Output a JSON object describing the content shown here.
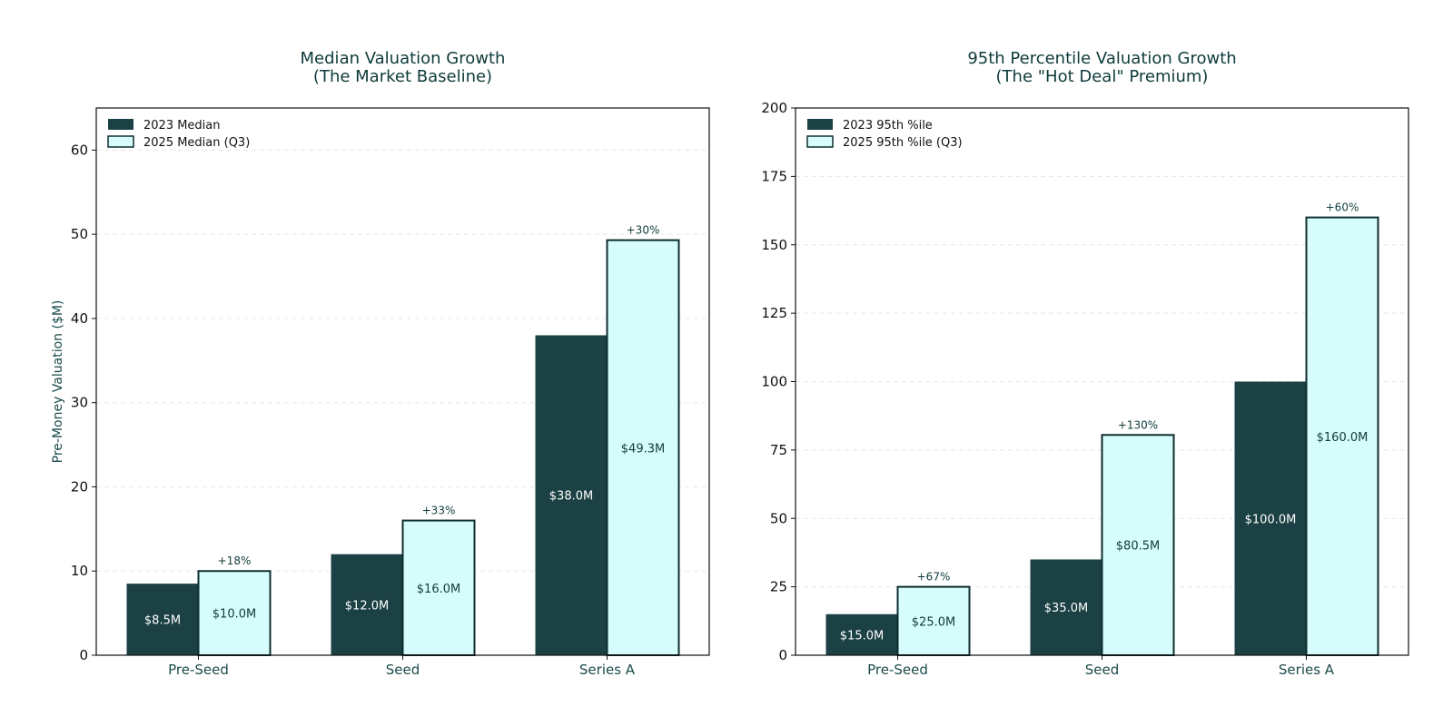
{
  "chart_data": [
    {
      "type": "bar",
      "title": "Median Valuation Growth",
      "subtitle": "(The Market Baseline)",
      "categories": [
        "Pre-Seed",
        "Seed",
        "Series A"
      ],
      "series": [
        {
          "name": "2023 Median",
          "values": [
            8.5,
            12.0,
            38.0
          ],
          "labels": [
            "$8.5M",
            "$12.0M",
            "$38.0M"
          ],
          "color": "#1b4144"
        },
        {
          "name": "2025 Median (Q3)",
          "values": [
            10.0,
            16.0,
            49.3
          ],
          "labels": [
            "$10.0M",
            "$16.0M",
            "$49.3M"
          ],
          "color": "#d6fcfc"
        }
      ],
      "growth_labels": [
        "+18%",
        "+33%",
        "+30%"
      ],
      "xlabel": "",
      "ylabel": "Pre-Money Valuation ($M)",
      "ylim": [
        0,
        65
      ],
      "yticks": [
        0,
        10,
        20,
        30,
        40,
        50,
        60
      ],
      "grid": true,
      "legend": "top-left"
    },
    {
      "type": "bar",
      "title": "95th Percentile Valuation Growth",
      "subtitle": "(The \"Hot Deal\" Premium)",
      "categories": [
        "Pre-Seed",
        "Seed",
        "Series A"
      ],
      "series": [
        {
          "name": "2023 95th %ile",
          "values": [
            15.0,
            35.0,
            100.0
          ],
          "labels": [
            "$15.0M",
            "$35.0M",
            "$100.0M"
          ],
          "color": "#1b4144"
        },
        {
          "name": "2025 95th %ile (Q3)",
          "values": [
            25.0,
            80.5,
            160.0
          ],
          "labels": [
            "$25.0M",
            "$80.5M",
            "$160.0M"
          ],
          "color": "#d6fcfc"
        }
      ],
      "growth_labels": [
        "+67%",
        "+130%",
        "+60%"
      ],
      "xlabel": "",
      "ylabel": "",
      "ylim": [
        0,
        200
      ],
      "yticks": [
        0,
        25,
        50,
        75,
        100,
        125,
        150,
        175,
        200
      ],
      "grid": true,
      "legend": "top-left"
    }
  ]
}
